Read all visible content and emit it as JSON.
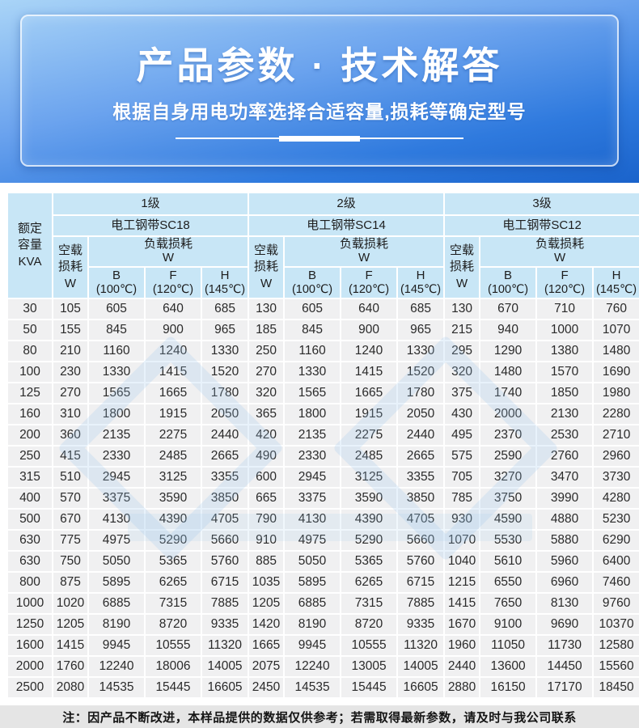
{
  "banner": {
    "title": "产品参数 · 技术解答",
    "subtitle": "根据自身用电功率选择合适容量,损耗等确定型号"
  },
  "table": {
    "corner_label": "额定容量KVA",
    "no_load_label": "空载损耗W",
    "load_label": "负载损耗",
    "load_unit": "W",
    "groups": [
      {
        "grade": "1级",
        "steel": "电工钢带SC18"
      },
      {
        "grade": "2级",
        "steel": "电工钢带SC14"
      },
      {
        "grade": "3级",
        "steel": "电工钢带SC12"
      }
    ],
    "temp_cols": [
      {
        "letter": "B",
        "temp": "(100℃)"
      },
      {
        "letter": "F",
        "temp": "(120℃)"
      },
      {
        "letter": "H",
        "temp": "(145℃)"
      }
    ],
    "rows": [
      {
        "kva": "30",
        "values": [
          "105",
          "605",
          "640",
          "685",
          "130",
          "605",
          "640",
          "685",
          "130",
          "670",
          "710",
          "760"
        ]
      },
      {
        "kva": "50",
        "values": [
          "155",
          "845",
          "900",
          "965",
          "185",
          "845",
          "900",
          "965",
          "215",
          "940",
          "1000",
          "1070"
        ]
      },
      {
        "kva": "80",
        "values": [
          "210",
          "1160",
          "1240",
          "1330",
          "250",
          "1160",
          "1240",
          "1330",
          "295",
          "1290",
          "1380",
          "1480"
        ]
      },
      {
        "kva": "100",
        "values": [
          "230",
          "1330",
          "1415",
          "1520",
          "270",
          "1330",
          "1415",
          "1520",
          "320",
          "1480",
          "1570",
          "1690"
        ]
      },
      {
        "kva": "125",
        "values": [
          "270",
          "1565",
          "1665",
          "1780",
          "320",
          "1565",
          "1665",
          "1780",
          "375",
          "1740",
          "1850",
          "1980"
        ]
      },
      {
        "kva": "160",
        "values": [
          "310",
          "1800",
          "1915",
          "2050",
          "365",
          "1800",
          "1915",
          "2050",
          "430",
          "2000",
          "2130",
          "2280"
        ]
      },
      {
        "kva": "200",
        "values": [
          "360",
          "2135",
          "2275",
          "2440",
          "420",
          "2135",
          "2275",
          "2440",
          "495",
          "2370",
          "2530",
          "2710"
        ]
      },
      {
        "kva": "250",
        "values": [
          "415",
          "2330",
          "2485",
          "2665",
          "490",
          "2330",
          "2485",
          "2665",
          "575",
          "2590",
          "2760",
          "2960"
        ]
      },
      {
        "kva": "315",
        "values": [
          "510",
          "2945",
          "3125",
          "3355",
          "600",
          "2945",
          "3125",
          "3355",
          "705",
          "3270",
          "3470",
          "3730"
        ]
      },
      {
        "kva": "400",
        "values": [
          "570",
          "3375",
          "3590",
          "3850",
          "665",
          "3375",
          "3590",
          "3850",
          "785",
          "3750",
          "3990",
          "4280"
        ]
      },
      {
        "kva": "500",
        "values": [
          "670",
          "4130",
          "4390",
          "4705",
          "790",
          "4130",
          "4390",
          "4705",
          "930",
          "4590",
          "4880",
          "5230"
        ]
      },
      {
        "kva": "630",
        "values": [
          "775",
          "4975",
          "5290",
          "5660",
          "910",
          "4975",
          "5290",
          "5660",
          "1070",
          "5530",
          "5880",
          "6290"
        ]
      },
      {
        "kva": "630",
        "values": [
          "750",
          "5050",
          "5365",
          "5760",
          "885",
          "5050",
          "5365",
          "5760",
          "1040",
          "5610",
          "5960",
          "6400"
        ]
      },
      {
        "kva": "800",
        "values": [
          "875",
          "5895",
          "6265",
          "6715",
          "1035",
          "5895",
          "6265",
          "6715",
          "1215",
          "6550",
          "6960",
          "7460"
        ]
      },
      {
        "kva": "1000",
        "values": [
          "1020",
          "6885",
          "7315",
          "7885",
          "1205",
          "6885",
          "7315",
          "7885",
          "1415",
          "7650",
          "8130",
          "9760"
        ]
      },
      {
        "kva": "1250",
        "values": [
          "1205",
          "8190",
          "8720",
          "9335",
          "1420",
          "8190",
          "8720",
          "9335",
          "1670",
          "9100",
          "9690",
          "10370"
        ]
      },
      {
        "kva": "1600",
        "values": [
          "1415",
          "9945",
          "10555",
          "11320",
          "1665",
          "9945",
          "10555",
          "11320",
          "1960",
          "11050",
          "11730",
          "12580"
        ]
      },
      {
        "kva": "2000",
        "values": [
          "1760",
          "12240",
          "18006",
          "14005",
          "2075",
          "12240",
          "13005",
          "14005",
          "2440",
          "13600",
          "14450",
          "15560"
        ]
      },
      {
        "kva": "2500",
        "values": [
          "2080",
          "14535",
          "15445",
          "16605",
          "2450",
          "14535",
          "15445",
          "16605",
          "2880",
          "16150",
          "17170",
          "18450"
        ]
      }
    ]
  },
  "note": {
    "text": "注：因产品不断改进，本样品提供的数据仅供参考；若需取得最新参数，请及时与我公司联系"
  },
  "colors": {
    "banner_gradient_top": "#a9d4f7",
    "banner_gradient_bottom": "#1a63cb",
    "banner_text": "#ffffff",
    "header_cell_bg": "#c8e6f6",
    "data_cell_bg": "#f0f0f1",
    "grid_line": "#ffffff",
    "note_bg": "#e5e5e5",
    "watermark_tint": "#96c3eb"
  }
}
